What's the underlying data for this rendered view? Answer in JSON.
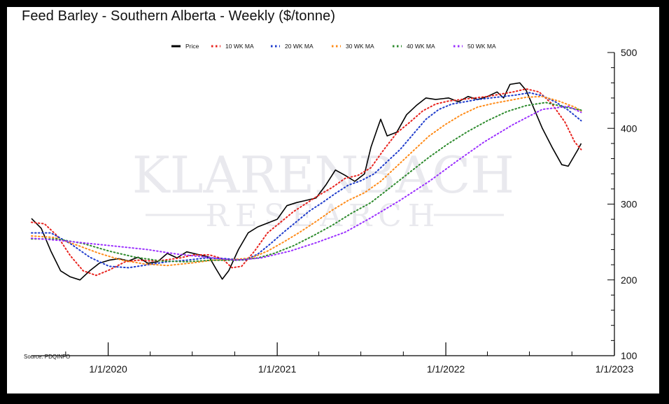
{
  "title": "Feed Barley - Southern Alberta - Weekly ($/tonne)",
  "source": "Source: PDQINFO",
  "watermark": {
    "line1": "KLARENBACH",
    "line2": "RESEARCH"
  },
  "chart_data": {
    "type": "line",
    "title": "Feed Barley - Southern Alberta - Weekly ($/tonne)",
    "xlabel": "",
    "ylabel": "",
    "ylim": [
      100,
      500
    ],
    "y_ticks": [
      100,
      200,
      300,
      400,
      500
    ],
    "y_axis_side": "right",
    "x_range": [
      "2019-07-19",
      "2023-01-01"
    ],
    "x_ticks": [
      "2020-01-01",
      "2021-01-01",
      "2022-01-01",
      "2023-01-01"
    ],
    "x_tick_labels": [
      "1/1/2020",
      "1/1/2021",
      "1/1/2022",
      "1/1/2023"
    ],
    "legend_position": "top-center",
    "grid": false,
    "series": [
      {
        "name": "Price",
        "color": "#000000",
        "style": "solid",
        "points": [
          [
            "2019-07-19",
            281
          ],
          [
            "2019-08-09",
            268
          ],
          [
            "2019-08-30",
            238
          ],
          [
            "2019-09-20",
            212
          ],
          [
            "2019-10-11",
            204
          ],
          [
            "2019-11-01",
            200
          ],
          [
            "2019-11-22",
            212
          ],
          [
            "2019-12-13",
            222
          ],
          [
            "2020-01-03",
            226
          ],
          [
            "2020-01-24",
            228
          ],
          [
            "2020-02-14",
            225
          ],
          [
            "2020-03-06",
            230
          ],
          [
            "2020-03-27",
            222
          ],
          [
            "2020-04-17",
            224
          ],
          [
            "2020-05-08",
            235
          ],
          [
            "2020-05-29",
            229
          ],
          [
            "2020-06-19",
            237
          ],
          [
            "2020-07-10",
            234
          ],
          [
            "2020-08-07",
            230
          ],
          [
            "2020-08-21",
            215
          ],
          [
            "2020-09-04",
            201
          ],
          [
            "2020-09-18",
            212
          ],
          [
            "2020-10-09",
            240
          ],
          [
            "2020-10-30",
            262
          ],
          [
            "2020-11-20",
            270
          ],
          [
            "2020-12-11",
            275
          ],
          [
            "2021-01-01",
            280
          ],
          [
            "2021-01-22",
            298
          ],
          [
            "2021-02-12",
            302
          ],
          [
            "2021-03-05",
            305
          ],
          [
            "2021-03-26",
            308
          ],
          [
            "2021-04-16",
            325
          ],
          [
            "2021-05-07",
            345
          ],
          [
            "2021-05-28",
            338
          ],
          [
            "2021-06-18",
            330
          ],
          [
            "2021-07-09",
            340
          ],
          [
            "2021-07-23",
            375
          ],
          [
            "2021-08-06",
            400
          ],
          [
            "2021-08-13",
            412
          ],
          [
            "2021-08-27",
            390
          ],
          [
            "2021-09-17",
            395
          ],
          [
            "2021-10-08",
            418
          ],
          [
            "2021-10-29",
            430
          ],
          [
            "2021-11-19",
            440
          ],
          [
            "2021-12-10",
            438
          ],
          [
            "2022-01-07",
            440
          ],
          [
            "2022-01-28",
            435
          ],
          [
            "2022-02-18",
            442
          ],
          [
            "2022-03-11",
            438
          ],
          [
            "2022-04-01",
            442
          ],
          [
            "2022-04-22",
            448
          ],
          [
            "2022-05-06",
            440
          ],
          [
            "2022-05-20",
            458
          ],
          [
            "2022-06-10",
            460
          ],
          [
            "2022-06-24",
            450
          ],
          [
            "2022-07-08",
            430
          ],
          [
            "2022-07-29",
            400
          ],
          [
            "2022-08-19",
            375
          ],
          [
            "2022-09-09",
            352
          ],
          [
            "2022-09-23",
            350
          ],
          [
            "2022-10-14",
            372
          ],
          [
            "2022-10-21",
            380
          ]
        ]
      },
      {
        "name": "10 WK MA",
        "color": "#e8231e",
        "style": "dotted",
        "points": [
          [
            "2019-07-19",
            276
          ],
          [
            "2019-08-16",
            274
          ],
          [
            "2019-09-13",
            258
          ],
          [
            "2019-10-11",
            232
          ],
          [
            "2019-11-08",
            212
          ],
          [
            "2019-12-06",
            206
          ],
          [
            "2020-01-03",
            213
          ],
          [
            "2020-02-07",
            224
          ],
          [
            "2020-03-06",
            226
          ],
          [
            "2020-04-03",
            225
          ],
          [
            "2020-05-01",
            226
          ],
          [
            "2020-06-05",
            229
          ],
          [
            "2020-07-03",
            233
          ],
          [
            "2020-08-07",
            233
          ],
          [
            "2020-09-04",
            228
          ],
          [
            "2020-09-25",
            216
          ],
          [
            "2020-10-16",
            218
          ],
          [
            "2020-11-13",
            238
          ],
          [
            "2020-12-11",
            262
          ],
          [
            "2021-01-08",
            276
          ],
          [
            "2021-02-05",
            290
          ],
          [
            "2021-03-05",
            301
          ],
          [
            "2021-04-02",
            312
          ],
          [
            "2021-04-30",
            322
          ],
          [
            "2021-05-28",
            334
          ],
          [
            "2021-06-25",
            338
          ],
          [
            "2021-07-23",
            348
          ],
          [
            "2021-08-20",
            372
          ],
          [
            "2021-09-17",
            394
          ],
          [
            "2021-10-15",
            408
          ],
          [
            "2021-11-12",
            423
          ],
          [
            "2021-12-10",
            432
          ],
          [
            "2022-01-07",
            436
          ],
          [
            "2022-02-04",
            438
          ],
          [
            "2022-03-04",
            440
          ],
          [
            "2022-04-01",
            442
          ],
          [
            "2022-04-29",
            445
          ],
          [
            "2022-05-27",
            448
          ],
          [
            "2022-06-24",
            452
          ],
          [
            "2022-07-22",
            448
          ],
          [
            "2022-08-19",
            432
          ],
          [
            "2022-09-16",
            408
          ],
          [
            "2022-10-07",
            382
          ],
          [
            "2022-10-21",
            372
          ]
        ]
      },
      {
        "name": "20 WK MA",
        "color": "#1f3ccc",
        "style": "dotted",
        "points": [
          [
            "2019-07-19",
            262
          ],
          [
            "2019-08-30",
            262
          ],
          [
            "2019-10-11",
            248
          ],
          [
            "2019-11-22",
            230
          ],
          [
            "2020-01-03",
            218
          ],
          [
            "2020-02-14",
            216
          ],
          [
            "2020-03-27",
            220
          ],
          [
            "2020-05-08",
            224
          ],
          [
            "2020-06-19",
            226
          ],
          [
            "2020-07-31",
            229
          ],
          [
            "2020-09-11",
            228
          ],
          [
            "2020-10-23",
            226
          ],
          [
            "2020-11-20",
            234
          ],
          [
            "2020-12-18",
            248
          ],
          [
            "2021-01-15",
            263
          ],
          [
            "2021-02-12",
            277
          ],
          [
            "2021-03-12",
            291
          ],
          [
            "2021-04-09",
            302
          ],
          [
            "2021-05-07",
            314
          ],
          [
            "2021-06-04",
            325
          ],
          [
            "2021-07-02",
            331
          ],
          [
            "2021-07-30",
            340
          ],
          [
            "2021-08-27",
            356
          ],
          [
            "2021-09-24",
            372
          ],
          [
            "2021-10-22",
            392
          ],
          [
            "2021-11-19",
            412
          ],
          [
            "2021-12-17",
            425
          ],
          [
            "2022-01-14",
            432
          ],
          [
            "2022-02-11",
            435
          ],
          [
            "2022-03-11",
            438
          ],
          [
            "2022-04-08",
            440
          ],
          [
            "2022-05-06",
            442
          ],
          [
            "2022-06-03",
            444
          ],
          [
            "2022-07-01",
            447
          ],
          [
            "2022-07-29",
            443
          ],
          [
            "2022-08-26",
            435
          ],
          [
            "2022-09-23",
            424
          ],
          [
            "2022-10-21",
            410
          ]
        ]
      },
      {
        "name": "30 WK MA",
        "color": "#ff8c1a",
        "style": "dotted",
        "points": [
          [
            "2019-07-19",
            258
          ],
          [
            "2019-09-06",
            256
          ],
          [
            "2019-10-25",
            246
          ],
          [
            "2019-12-13",
            235
          ],
          [
            "2020-01-31",
            226
          ],
          [
            "2020-03-20",
            221
          ],
          [
            "2020-05-08",
            219
          ],
          [
            "2020-06-26",
            222
          ],
          [
            "2020-08-14",
            226
          ],
          [
            "2020-10-02",
            227
          ],
          [
            "2020-11-06",
            229
          ],
          [
            "2020-12-11",
            238
          ],
          [
            "2021-01-15",
            250
          ],
          [
            "2021-02-19",
            263
          ],
          [
            "2021-03-26",
            277
          ],
          [
            "2021-04-30",
            292
          ],
          [
            "2021-06-04",
            305
          ],
          [
            "2021-07-09",
            315
          ],
          [
            "2021-08-13",
            330
          ],
          [
            "2021-09-17",
            350
          ],
          [
            "2021-10-22",
            370
          ],
          [
            "2021-11-26",
            390
          ],
          [
            "2021-12-31",
            405
          ],
          [
            "2022-02-04",
            418
          ],
          [
            "2022-03-11",
            428
          ],
          [
            "2022-04-15",
            433
          ],
          [
            "2022-05-20",
            437
          ],
          [
            "2022-06-24",
            441
          ],
          [
            "2022-07-29",
            442
          ],
          [
            "2022-09-02",
            436
          ],
          [
            "2022-10-07",
            428
          ],
          [
            "2022-10-21",
            423
          ]
        ]
      },
      {
        "name": "40 WK MA",
        "color": "#2e8b2e",
        "style": "dotted",
        "points": [
          [
            "2019-07-19",
            254
          ],
          [
            "2019-09-13",
            254
          ],
          [
            "2019-11-08",
            248
          ],
          [
            "2020-01-03",
            238
          ],
          [
            "2020-02-28",
            230
          ],
          [
            "2020-04-24",
            225
          ],
          [
            "2020-06-19",
            224
          ],
          [
            "2020-08-14",
            226
          ],
          [
            "2020-10-09",
            226
          ],
          [
            "2020-11-20",
            229
          ],
          [
            "2020-12-25",
            235
          ],
          [
            "2021-02-05",
            245
          ],
          [
            "2021-03-19",
            258
          ],
          [
            "2021-04-30",
            272
          ],
          [
            "2021-06-11",
            288
          ],
          [
            "2021-07-23",
            302
          ],
          [
            "2021-09-03",
            322
          ],
          [
            "2021-10-15",
            342
          ],
          [
            "2021-11-26",
            362
          ],
          [
            "2022-01-07",
            380
          ],
          [
            "2022-02-18",
            396
          ],
          [
            "2022-04-01",
            410
          ],
          [
            "2022-05-13",
            422
          ],
          [
            "2022-06-24",
            430
          ],
          [
            "2022-08-05",
            434
          ],
          [
            "2022-09-16",
            428
          ],
          [
            "2022-10-21",
            424
          ]
        ]
      },
      {
        "name": "50 WK MA",
        "color": "#9b30ff",
        "style": "dotted",
        "points": [
          [
            "2019-07-19",
            255
          ],
          [
            "2019-09-20",
            252
          ],
          [
            "2019-11-22",
            248
          ],
          [
            "2020-01-24",
            244
          ],
          [
            "2020-03-27",
            240
          ],
          [
            "2020-05-29",
            234
          ],
          [
            "2020-07-31",
            230
          ],
          [
            "2020-10-02",
            226
          ],
          [
            "2020-11-27",
            229
          ],
          [
            "2021-01-29",
            238
          ],
          [
            "2021-03-26",
            249
          ],
          [
            "2021-05-28",
            263
          ],
          [
            "2021-07-23",
            282
          ],
          [
            "2021-09-24",
            305
          ],
          [
            "2021-11-26",
            330
          ],
          [
            "2022-01-28",
            358
          ],
          [
            "2022-03-25",
            382
          ],
          [
            "2022-05-27",
            405
          ],
          [
            "2022-07-29",
            425
          ],
          [
            "2022-09-23",
            429
          ],
          [
            "2022-10-21",
            421
          ]
        ]
      }
    ]
  }
}
